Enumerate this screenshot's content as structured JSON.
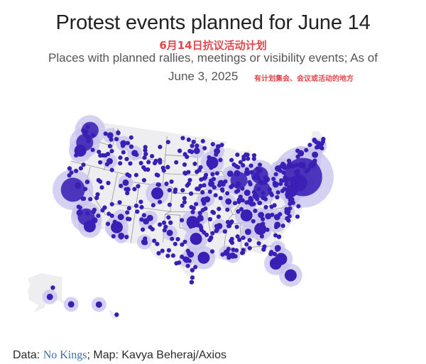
{
  "header": {
    "title": "Protest events planned for June 14",
    "title_cn": "6月14日抗议活动计划",
    "subtitle": "Places with planned rallies, meetings or visibility events; As of",
    "subtitle_date": "June 3, 2025",
    "subtitle_cn": "有计划集会、会议或活动的地方"
  },
  "footer": {
    "data_label": "Data: ",
    "source_link": "No Kings",
    "map_credit": "; Map: Kavya Beheraj/Axios"
  },
  "colors": {
    "dot": "#3a1fb5",
    "halo": "#c7c1ee",
    "land": "#eeeef1",
    "border": "#7a7a7a",
    "title": "#222222",
    "annotation_red": "#e2474b",
    "link": "#3b6ea5"
  },
  "map_data": {
    "type": "proportional-symbol-map",
    "region": "United States",
    "size_scale_note": "relative event size category 1 (small) to 6 (largest)",
    "events": [
      {
        "place": "New York City",
        "lat": 40.7,
        "lon": -74.0,
        "size": 6
      },
      {
        "place": "Boston",
        "lat": 42.36,
        "lon": -71.06,
        "size": 2
      },
      {
        "place": "San Francisco Bay Area",
        "lat": 37.7,
        "lon": -122.2,
        "size": 5
      },
      {
        "place": "Los Angeles",
        "lat": 34.05,
        "lon": -118.25,
        "size": 4
      },
      {
        "place": "Seattle",
        "lat": 47.6,
        "lon": -122.3,
        "size": 4
      },
      {
        "place": "Portland",
        "lat": 45.5,
        "lon": -122.7,
        "size": 4
      },
      {
        "place": "Philadelphia",
        "lat": 39.95,
        "lon": -75.16,
        "size": 4
      },
      {
        "place": "Chicago",
        "lat": 41.88,
        "lon": -87.63,
        "size": 4
      },
      {
        "place": "Detroit",
        "lat": 42.33,
        "lon": -83.05,
        "size": 4
      },
      {
        "place": "Columbus",
        "lat": 39.96,
        "lon": -83.0,
        "size": 4
      },
      {
        "place": "Denver",
        "lat": 39.74,
        "lon": -104.99,
        "size": 3
      },
      {
        "place": "Minneapolis",
        "lat": 44.98,
        "lon": -93.27,
        "size": 3
      },
      {
        "place": "Dallas",
        "lat": 32.78,
        "lon": -96.8,
        "size": 3
      },
      {
        "place": "Houston",
        "lat": 29.76,
        "lon": -95.37,
        "size": 3
      },
      {
        "place": "Austin",
        "lat": 30.27,
        "lon": -97.74,
        "size": 2
      },
      {
        "place": "Tampa",
        "lat": 27.95,
        "lon": -82.46,
        "size": 3
      },
      {
        "place": "Atlanta",
        "lat": 33.75,
        "lon": -84.39,
        "size": 3
      },
      {
        "place": "Washington DC",
        "lat": 38.9,
        "lon": -77.04,
        "size": 3
      },
      {
        "place": "Phoenix",
        "lat": 33.45,
        "lon": -112.07,
        "size": 3
      },
      {
        "place": "San Diego",
        "lat": 32.72,
        "lon": -117.16,
        "size": 3
      },
      {
        "place": "Las Vegas",
        "lat": 36.17,
        "lon": -115.14,
        "size": 1
      },
      {
        "place": "Salt Lake City",
        "lat": 40.76,
        "lon": -111.89,
        "size": 2
      },
      {
        "place": "Boise",
        "lat": 43.62,
        "lon": -116.2,
        "size": 2
      },
      {
        "place": "Spokane",
        "lat": 47.66,
        "lon": -117.43,
        "size": 2
      },
      {
        "place": "Missoula",
        "lat": 46.87,
        "lon": -114.0,
        "size": 2
      },
      {
        "place": "Bozeman",
        "lat": 45.68,
        "lon": -111.04,
        "size": 2
      },
      {
        "place": "Albuquerque",
        "lat": 35.08,
        "lon": -106.65,
        "size": 2
      },
      {
        "place": "Santa Fe",
        "lat": 35.69,
        "lon": -105.94,
        "size": 2
      },
      {
        "place": "Tucson",
        "lat": 32.22,
        "lon": -110.97,
        "size": 2
      },
      {
        "place": "Kansas City",
        "lat": 39.1,
        "lon": -94.58,
        "size": 2
      },
      {
        "place": "St. Louis",
        "lat": 38.63,
        "lon": -90.2,
        "size": 2
      },
      {
        "place": "Omaha",
        "lat": 41.26,
        "lon": -95.93,
        "size": 1
      },
      {
        "place": "Milwaukee",
        "lat": 43.04,
        "lon": -87.91,
        "size": 2
      },
      {
        "place": "Madison",
        "lat": 43.07,
        "lon": -89.4,
        "size": 2
      },
      {
        "place": "Indianapolis",
        "lat": 39.77,
        "lon": -86.16,
        "size": 2
      },
      {
        "place": "Nashville",
        "lat": 36.16,
        "lon": -86.78,
        "size": 3
      },
      {
        "place": "Charlotte",
        "lat": 35.23,
        "lon": -80.84,
        "size": 2
      },
      {
        "place": "Raleigh",
        "lat": 35.78,
        "lon": -78.64,
        "size": 2
      },
      {
        "place": "Asheville",
        "lat": 35.6,
        "lon": -82.55,
        "size": 2
      },
      {
        "place": "Richmond",
        "lat": 37.54,
        "lon": -77.44,
        "size": 2
      },
      {
        "place": "Pittsburgh",
        "lat": 40.44,
        "lon": -79.99,
        "size": 2
      },
      {
        "place": "Cleveland",
        "lat": 41.5,
        "lon": -81.69,
        "size": 2
      },
      {
        "place": "Cincinnati",
        "lat": 39.1,
        "lon": -84.51,
        "size": 2
      },
      {
        "place": "Louisville",
        "lat": 38.25,
        "lon": -85.76,
        "size": 2
      },
      {
        "place": "Orlando",
        "lat": 28.54,
        "lon": -81.38,
        "size": 3
      },
      {
        "place": "Jacksonville",
        "lat": 30.33,
        "lon": -81.66,
        "size": 2
      },
      {
        "place": "Miami",
        "lat": 25.76,
        "lon": -80.19,
        "size": 3
      },
      {
        "place": "New Orleans",
        "lat": 29.95,
        "lon": -90.07,
        "size": 2
      },
      {
        "place": "Oklahoma City",
        "lat": 35.47,
        "lon": -97.52,
        "size": 3
      },
      {
        "place": "Tulsa",
        "lat": 36.15,
        "lon": -95.99,
        "size": 2
      },
      {
        "place": "San Antonio",
        "lat": 29.42,
        "lon": -98.49,
        "size": 2
      },
      {
        "place": "El Paso",
        "lat": 31.76,
        "lon": -106.49,
        "size": 2
      },
      {
        "place": "Lubbock",
        "lat": 33.58,
        "lon": -101.85,
        "size": 2
      },
      {
        "place": "Wichita",
        "lat": 37.69,
        "lon": -97.34,
        "size": 1
      },
      {
        "place": "Lawrence",
        "lat": 38.97,
        "lon": -95.24,
        "size": 2
      },
      {
        "place": "Des Moines",
        "lat": 41.59,
        "lon": -93.62,
        "size": 2
      },
      {
        "place": "Iowa City",
        "lat": 41.66,
        "lon": -91.53,
        "size": 2
      },
      {
        "place": "Fargo",
        "lat": 46.88,
        "lon": -96.79,
        "size": 2
      },
      {
        "place": "Duluth",
        "lat": 46.79,
        "lon": -92.1,
        "size": 2
      },
      {
        "place": "Grand Rapids",
        "lat": 42.96,
        "lon": -85.67,
        "size": 2
      },
      {
        "place": "Ann Arbor",
        "lat": 42.28,
        "lon": -83.74,
        "size": 2
      },
      {
        "place": "Buffalo",
        "lat": 42.89,
        "lon": -78.88,
        "size": 2
      },
      {
        "place": "Rochester",
        "lat": 43.16,
        "lon": -77.61,
        "size": 2
      },
      {
        "place": "Syracuse",
        "lat": 43.05,
        "lon": -76.15,
        "size": 2
      },
      {
        "place": "Albany",
        "lat": 42.65,
        "lon": -73.76,
        "size": 2
      },
      {
        "place": "Burlington",
        "lat": 44.48,
        "lon": -73.21,
        "size": 2
      },
      {
        "place": "Portland ME",
        "lat": 43.66,
        "lon": -70.26,
        "size": 2
      },
      {
        "place": "Bangor",
        "lat": 44.8,
        "lon": -68.77,
        "size": 2
      },
      {
        "place": "Baltimore",
        "lat": 39.29,
        "lon": -76.61,
        "size": 2
      },
      {
        "place": "Eugene",
        "lat": 44.05,
        "lon": -123.09,
        "size": 3
      },
      {
        "place": "Sacramento",
        "lat": 38.58,
        "lon": -121.49,
        "size": 2
      },
      {
        "place": "Fresno",
        "lat": 36.74,
        "lon": -119.79,
        "size": 1
      },
      {
        "place": "Reno",
        "lat": 39.53,
        "lon": -119.81,
        "size": 1
      },
      {
        "place": "Eureka",
        "lat": 40.8,
        "lon": -124.16,
        "size": 1
      },
      {
        "place": "Santa Barbara",
        "lat": 34.42,
        "lon": -119.7,
        "size": 2
      },
      {
        "place": "Palm Springs",
        "lat": 33.83,
        "lon": -116.55,
        "size": 2
      },
      {
        "place": "Flagstaff",
        "lat": 35.2,
        "lon": -111.65,
        "size": 2
      },
      {
        "place": "Cheyenne",
        "lat": 41.14,
        "lon": -104.82,
        "size": 1
      },
      {
        "place": "Rapid City",
        "lat": 44.08,
        "lon": -103.23,
        "size": 1
      },
      {
        "place": "Billings",
        "lat": 45.78,
        "lon": -108.5,
        "size": 1
      },
      {
        "place": "Helena",
        "lat": 46.59,
        "lon": -112.04,
        "size": 1
      },
      {
        "place": "Bismarck",
        "lat": 46.81,
        "lon": -100.78,
        "size": 1
      },
      {
        "place": "Sioux Falls",
        "lat": 43.54,
        "lon": -96.73,
        "size": 1
      },
      {
        "place": "Lincoln",
        "lat": 40.81,
        "lon": -96.7,
        "size": 1
      },
      {
        "place": "Little Rock",
        "lat": 34.75,
        "lon": -92.29,
        "size": 2
      },
      {
        "place": "Memphis",
        "lat": 35.15,
        "lon": -90.05,
        "size": 1
      },
      {
        "place": "Jackson",
        "lat": 32.3,
        "lon": -90.18,
        "size": 1
      },
      {
        "place": "Birmingham",
        "lat": 33.52,
        "lon": -86.8,
        "size": 2
      },
      {
        "place": "Knoxville",
        "lat": 35.96,
        "lon": -83.92,
        "size": 2
      },
      {
        "place": "Columbia SC",
        "lat": 34.0,
        "lon": -81.03,
        "size": 2
      },
      {
        "place": "Savannah",
        "lat": 32.08,
        "lon": -81.09,
        "size": 1
      },
      {
        "place": "Tallahassee",
        "lat": 30.44,
        "lon": -84.28,
        "size": 1
      },
      {
        "place": "Baton Rouge",
        "lat": 30.45,
        "lon": -91.15,
        "size": 2
      },
      {
        "place": "Mobile",
        "lat": 30.69,
        "lon": -88.04,
        "size": 1
      },
      {
        "place": "Corpus Christi",
        "lat": 27.8,
        "lon": -97.4,
        "size": 1
      },
      {
        "place": "Brownsville",
        "lat": 25.9,
        "lon": -97.5,
        "size": 1
      },
      {
        "place": "Amarillo",
        "lat": 35.22,
        "lon": -101.83,
        "size": 1
      },
      {
        "place": "Anchorage",
        "lat": 61.22,
        "lon": -149.9,
        "size": 2,
        "inset": "alaska"
      },
      {
        "place": "Fairbanks",
        "lat": 64.84,
        "lon": -147.72,
        "size": 1,
        "inset": "alaska"
      },
      {
        "place": "Juneau",
        "lat": 58.3,
        "lon": -134.42,
        "size": 2,
        "inset": "alaska"
      },
      {
        "place": "Honolulu",
        "lat": 21.31,
        "lon": -157.86,
        "size": 2,
        "inset": "hawaii"
      },
      {
        "place": "Hilo",
        "lat": 19.72,
        "lon": -155.08,
        "size": 1,
        "inset": "hawaii"
      }
    ]
  }
}
